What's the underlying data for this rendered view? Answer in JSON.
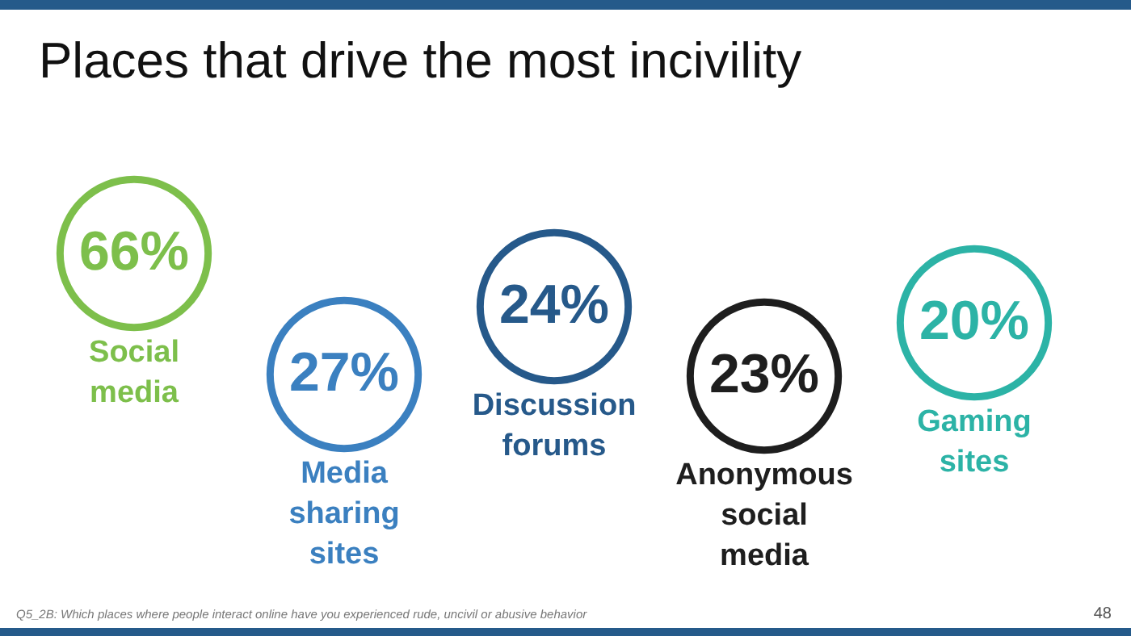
{
  "chart_data": {
    "type": "other",
    "title": "Places that drive the most incivility",
    "categories": [
      "Social media",
      "Media sharing sites",
      "Discussion forums",
      "Anonymous social media",
      "Gaming sites"
    ],
    "values": [
      66,
      27,
      24,
      23,
      20
    ],
    "value_labels": [
      "66%",
      "27%",
      "24%",
      "23%",
      "20%"
    ],
    "colors": [
      "#7dbf4b",
      "#3b80c0",
      "#26598a",
      "#1e1e1e",
      "#2cb3a6"
    ],
    "annotations": [
      "Q5_2B: Which places where  people interact online have you experienced  rude,  uncivil or abusive behavior",
      "48"
    ]
  }
}
